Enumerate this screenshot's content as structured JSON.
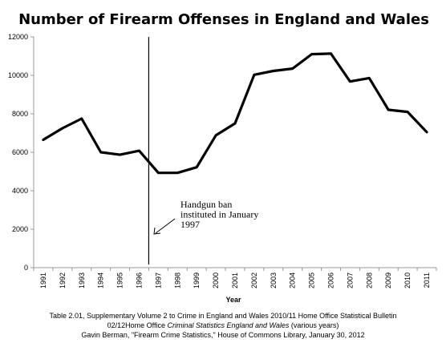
{
  "chart_data": {
    "type": "line",
    "title": "Number of Firearm Offenses in England and Wales",
    "xlabel": "Year",
    "ylabel": "",
    "x": [
      "1991",
      "1992",
      "1993",
      "1994",
      "1995",
      "1996",
      "1997",
      "1998",
      "1999",
      "2000",
      "2001",
      "2002",
      "2003",
      "2004",
      "2005",
      "2006",
      "2007",
      "2008",
      "2009",
      "2010",
      "2011"
    ],
    "series": [
      {
        "values": [
          6650,
          7250,
          7750,
          6000,
          5870,
          6080,
          4930,
          4930,
          5220,
          6880,
          7500,
          10030,
          10230,
          10350,
          11100,
          11130,
          9680,
          9860,
          8210,
          8100,
          7050
        ]
      }
    ],
    "ylim": [
      0,
      12000
    ],
    "yticks": [
      0,
      2000,
      4000,
      6000,
      8000,
      10000,
      12000
    ],
    "grid": false,
    "legend": "none",
    "marker_line_x": 1996.5,
    "annotation": {
      "lines": [
        "Handgun ban",
        "instituted in January",
        "1997"
      ]
    },
    "line_color": "#000000"
  },
  "caption": {
    "line1": "Table 2.01, Supplementary Volume 2 to Crime in England and Wales 2010/11 Home Office Statistical Bulletin",
    "line2_pre": "02/12Home Office ",
    "line2_italic": "Criminal Statistics England and Wales",
    "line2_post": " (various years)",
    "line3": "Gavin Berman, \"Firearm Crime Statistics,\" House of Commons  Library, January 30, 2012"
  }
}
